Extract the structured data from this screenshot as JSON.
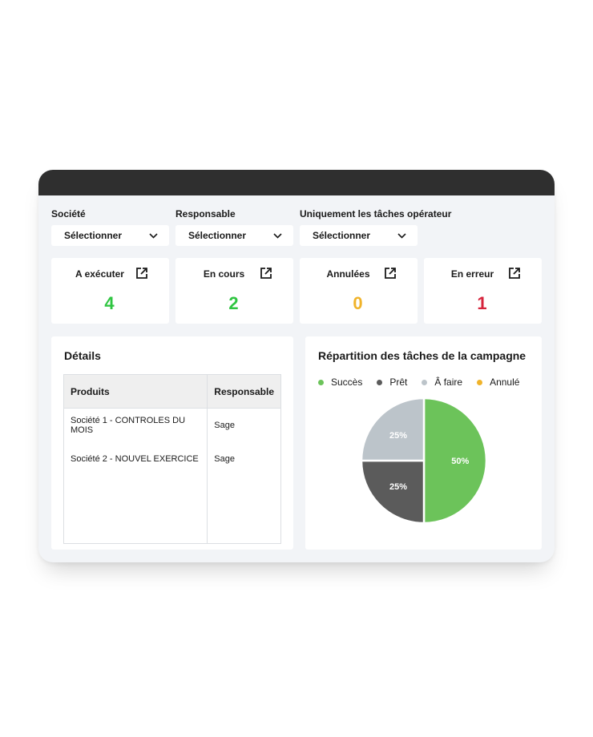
{
  "filters": [
    {
      "label": "Société",
      "value": "Sélectionner"
    },
    {
      "label": "Responsable",
      "value": "Sélectionner"
    },
    {
      "label": "Uniquement les tâches opérateur",
      "value": "Sélectionner"
    }
  ],
  "cards": [
    {
      "label": "A exécuter",
      "value": "4",
      "color": "#2fc541"
    },
    {
      "label": "En cours",
      "value": "2",
      "color": "#2fc541"
    },
    {
      "label": "Annulées",
      "value": "0",
      "color": "#f0b32a"
    },
    {
      "label": "En erreur",
      "value": "1",
      "color": "#d6243c"
    }
  ],
  "details": {
    "title": "Détails",
    "columns": [
      "Produits",
      "Responsable"
    ],
    "rows": [
      [
        "Société 1 - CONTROLES DU MOIS",
        "Sage"
      ],
      [
        "Société 2 - NOUVEL EXERCICE",
        "Sage"
      ]
    ]
  },
  "chart_data": {
    "type": "pie",
    "title": "Répartition des tâches de la campagne",
    "legend": [
      "Succès",
      "Prêt",
      "Â faire",
      "Annulé"
    ],
    "legend_placement": "top",
    "slices": [
      {
        "name": "Succès",
        "value": 50,
        "label": "50%",
        "color": "#6cc35a"
      },
      {
        "name": "Prêt",
        "value": 25,
        "label": "25%",
        "color": "#5b5b5b"
      },
      {
        "name": "Â faire",
        "value": 25,
        "label": "25%",
        "color": "#bcc4ca"
      },
      {
        "name": "Annulé",
        "value": 0,
        "label": "",
        "color": "#f0b32a"
      }
    ]
  }
}
